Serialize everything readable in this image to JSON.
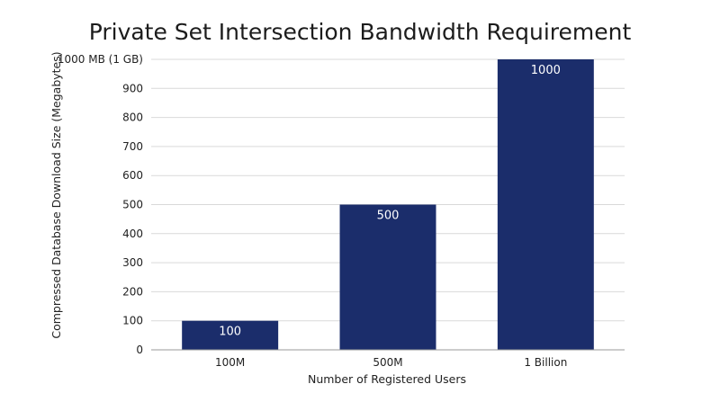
{
  "chart_data": {
    "type": "bar",
    "title": "Private Set Intersection Bandwidth Requirement",
    "xlabel": "Number of Registered Users",
    "ylabel": "Compressed Database Download Size (Megabytes)",
    "categories": [
      "100M",
      "500M",
      "1 Billion"
    ],
    "values": [
      100,
      500,
      1000
    ],
    "data_labels": [
      "100",
      "500",
      "1000"
    ],
    "ylim": [
      0,
      1000
    ],
    "yticks": [
      0,
      100,
      200,
      300,
      400,
      500,
      600,
      700,
      800,
      900,
      1000
    ],
    "ytick_labels": [
      "0",
      "100",
      "200",
      "300",
      "400",
      "500",
      "600",
      "700",
      "800",
      "900",
      "1000 MB (1 GB)"
    ],
    "grid": true,
    "legend": "none",
    "colors": {
      "bar": "#1b2d6b",
      "grid": "#d9d9d9",
      "axis": "#9a9a9a",
      "text": "#222222",
      "label": "#ffffff"
    }
  }
}
